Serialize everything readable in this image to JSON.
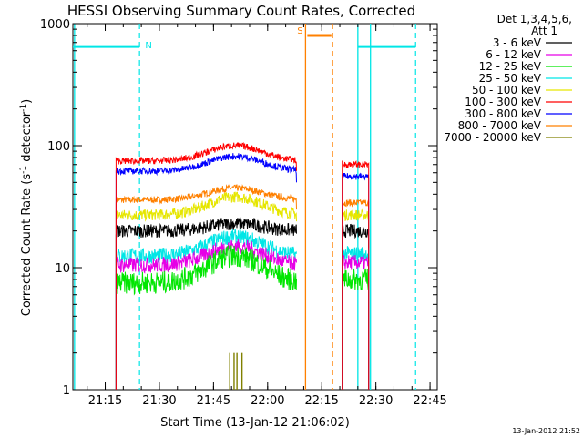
{
  "chart_data": {
    "type": "line",
    "title": "HESSI Observing Summary Count Rates, Corrected",
    "xlabel": "Start Time (13-Jan-12 21:06:02)",
    "ylabel_main": "Corrected Count Rate (s",
    "ylabel_sup1": "-1",
    "ylabel_mid": " detector",
    "ylabel_sup2": "-1",
    "ylabel_end": ")",
    "y_scale": "log",
    "ylim": [
      1,
      1000
    ],
    "xlim": [
      "21:06:02",
      "22:47:00"
    ],
    "x_ticks": [
      "21:15",
      "21:30",
      "21:45",
      "22:00",
      "22:15",
      "22:30",
      "22:45"
    ],
    "y_ticks": [
      "1",
      "10",
      "100",
      "1000"
    ],
    "legend_header": [
      "Det 1,3,4,5,6,",
      "Att 1"
    ],
    "legend_position": "right",
    "footer_stamp": "13-Jan-2012 21:52",
    "series": [
      {
        "name": "3 - 6 keV",
        "color": "#000000",
        "base": 20,
        "peak": 23,
        "noise": 0.06,
        "gap": 19,
        "post": 20
      },
      {
        "name": "6 - 12 keV",
        "color": "#e600e6",
        "base": 10.5,
        "peak": 15,
        "noise": 0.07,
        "gap": 11,
        "post": 11
      },
      {
        "name": "12 - 25 keV",
        "color": "#00e600",
        "base": 7.5,
        "peak": 12.5,
        "noise": 0.1,
        "gap": 8,
        "post": 8
      },
      {
        "name": "25 - 50 keV",
        "color": "#00e6e6",
        "base": 12.5,
        "peak": 18,
        "noise": 0.07,
        "gap": 13,
        "post": 13
      },
      {
        "name": "50 - 100 keV",
        "color": "#e6e600",
        "base": 27,
        "peak": 38,
        "noise": 0.05,
        "gap": 24,
        "post": 27
      },
      {
        "name": "100 - 300 keV",
        "color": "#ff0000",
        "base": 75,
        "peak": 100,
        "noise": 0.03,
        "gap": 62,
        "post": 70
      },
      {
        "name": "300 - 800 keV",
        "color": "#0000ff",
        "base": 62,
        "peak": 82,
        "noise": 0.03,
        "gap": 50,
        "post": 56
      },
      {
        "name": "800 - 7000 keV",
        "color": "#ff8000",
        "base": 36,
        "peak": 45,
        "noise": 0.03,
        "gap": 30,
        "post": 34
      },
      {
        "name": "7000 - 20000 keV",
        "color": "#808000",
        "base": 1,
        "peak": 1,
        "noise": 0,
        "gap": 1,
        "post": 1
      }
    ],
    "segments": {
      "data_start": "21:18:00",
      "data_end": "22:08:00",
      "resume_start": "22:20:40",
      "resume_end": "22:28:00",
      "peak_time": "21:51:00"
    },
    "annotations": [
      {
        "label": "N",
        "color": "#00e6e6",
        "level": 650,
        "bars": [
          [
            "21:06:02",
            "21:24:30"
          ],
          [
            "22:25:00",
            "22:41:00"
          ]
        ],
        "solid": [
          "21:06:30",
          "22:25:00",
          "22:28:30"
        ],
        "dashed": [
          "21:24:30",
          "22:41:00"
        ]
      },
      {
        "label": "S",
        "color": "#ff8000",
        "level": 800,
        "bars": [
          [
            "22:11:00",
            "22:17:40"
          ]
        ],
        "solid": [
          "22:10:30"
        ],
        "dashed": [
          "22:18:00"
        ]
      }
    ]
  }
}
